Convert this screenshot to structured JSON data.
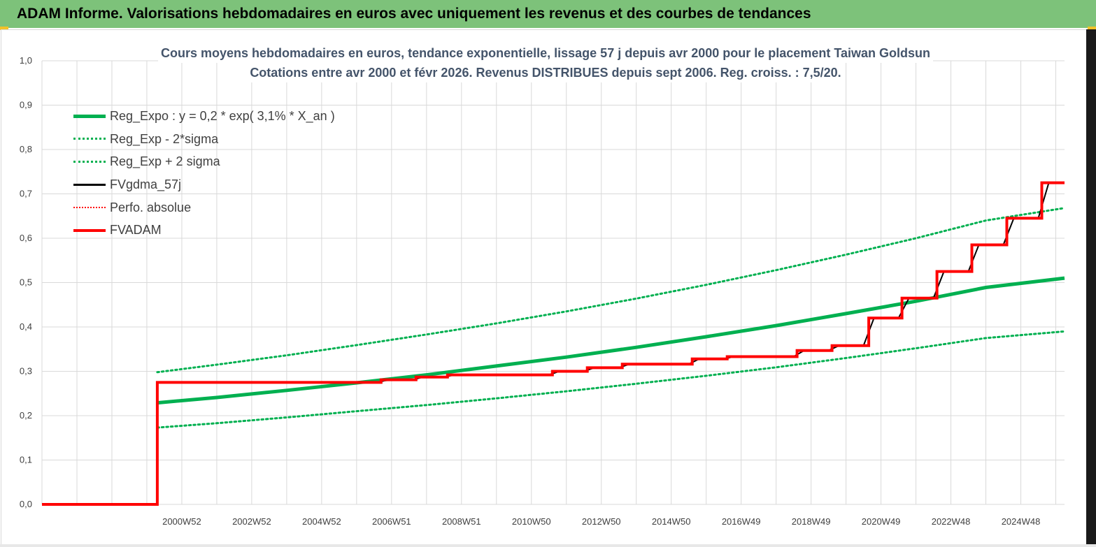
{
  "header": {
    "title": "ADAM Informe. Valorisations hebdomadaires en euros avec uniquement les revenus et des courbes de tendances"
  },
  "colors": {
    "banner": "#7dc27a",
    "reg_expo": "#00b050",
    "fvgdma": "#000000",
    "fvadam": "#ff0000",
    "perfo": "#ff0000",
    "grid": "#d9d9d9",
    "title_text": "#44546a"
  },
  "chart_data": {
    "type": "line",
    "title_line1": "Cours moyens hebdomadaires en euros, tendance exponentielle, lissage 57 j depuis avr 2000 pour le placement Taiwan Goldsun",
    "title_line2": "Cotations entre avr 2000 et févr 2026. Revenus DISTRIBUES depuis sept 2006. Reg. croiss. : 7,5/20.",
    "xlabel": "",
    "ylabel": "",
    "ylim": [
      0,
      1
    ],
    "y_ticks": [
      "0,0",
      "0,1",
      "0,2",
      "0,3",
      "0,4",
      "0,5",
      "0,6",
      "0,7",
      "0,8",
      "0,9",
      "1,0"
    ],
    "x_ticks": [
      "2000W52",
      "2002W52",
      "2004W52",
      "2006W51",
      "2008W51",
      "2010W50",
      "2012W50",
      "2014W50",
      "2016W49",
      "2018W49",
      "2020W49",
      "2022W48",
      "2024W48"
    ],
    "x_tick_years": [
      2001.0,
      2003.0,
      2005.0,
      2007.0,
      2009.0,
      2011.0,
      2013.0,
      2015.0,
      2017.0,
      2019.0,
      2021.0,
      2023.0,
      2025.0
    ],
    "x_range": [
      1997.0,
      2026.25
    ],
    "grid": true,
    "legend_position": "top-left",
    "series": [
      {
        "name": "Reg_Expo : y = 0,2 * exp( 3,1% *  X_an )",
        "style": "solid-thick",
        "x": [
          2000.3,
          2002,
          2004,
          2006,
          2008,
          2010,
          2012,
          2014,
          2016,
          2018,
          2020,
          2022,
          2024,
          2026.25
        ],
        "y": [
          0.229,
          0.241,
          0.257,
          0.274,
          0.292,
          0.312,
          0.332,
          0.354,
          0.378,
          0.403,
          0.43,
          0.458,
          0.489,
          0.51
        ]
      },
      {
        "name": "Reg_Exp - 2*sigma",
        "style": "dotted-green",
        "x": [
          2000.3,
          2002,
          2004,
          2006,
          2008,
          2010,
          2012,
          2014,
          2016,
          2018,
          2020,
          2022,
          2024,
          2026.25
        ],
        "y": [
          0.173,
          0.183,
          0.196,
          0.21,
          0.224,
          0.239,
          0.255,
          0.272,
          0.29,
          0.309,
          0.33,
          0.352,
          0.375,
          0.39
        ]
      },
      {
        "name": "Reg_Exp + 2 sigma",
        "style": "dotted-green",
        "x": [
          2000.3,
          2002,
          2004,
          2006,
          2008,
          2010,
          2012,
          2014,
          2016,
          2018,
          2020,
          2022,
          2024,
          2026.25
        ],
        "y": [
          0.298,
          0.315,
          0.336,
          0.359,
          0.383,
          0.408,
          0.435,
          0.464,
          0.495,
          0.528,
          0.563,
          0.6,
          0.64,
          0.668
        ]
      },
      {
        "name": "FVgdma_57j",
        "style": "solid-black",
        "x": [
          1997.0,
          2000.3,
          2000.3,
          2006.6,
          2006.9,
          2007.6,
          2007.9,
          2008.5,
          2008.8,
          2011.5,
          2011.8,
          2012.5,
          2012.8,
          2013.5,
          2013.8,
          2015.5,
          2015.8,
          2016.5,
          2016.8,
          2018.5,
          2018.8,
          2019.5,
          2019.8,
          2020.5,
          2020.8,
          2021.5,
          2021.8,
          2022.5,
          2022.8,
          2023.5,
          2023.8,
          2024.5,
          2024.8,
          2025.5,
          2025.8,
          2026.25
        ],
        "y": [
          0.0,
          0.0,
          0.275,
          0.275,
          0.281,
          0.281,
          0.287,
          0.287,
          0.292,
          0.292,
          0.3,
          0.3,
          0.308,
          0.308,
          0.316,
          0.316,
          0.328,
          0.328,
          0.333,
          0.333,
          0.347,
          0.347,
          0.358,
          0.358,
          0.42,
          0.42,
          0.465,
          0.465,
          0.525,
          0.525,
          0.585,
          0.585,
          0.645,
          0.645,
          0.725,
          0.725
        ]
      },
      {
        "name": "Perfo. absolue",
        "style": "dotted-red",
        "x": [],
        "y": []
      },
      {
        "name": "FVADAM",
        "style": "step-red",
        "x": [
          1997.0,
          2000.3,
          2000.3,
          2006.7,
          2006.7,
          2007.7,
          2007.7,
          2008.6,
          2008.6,
          2011.6,
          2011.6,
          2012.6,
          2012.6,
          2013.6,
          2013.6,
          2015.6,
          2015.6,
          2016.6,
          2016.6,
          2018.6,
          2018.6,
          2019.6,
          2019.6,
          2020.65,
          2020.65,
          2021.6,
          2021.6,
          2022.6,
          2022.6,
          2023.6,
          2023.6,
          2024.6,
          2024.6,
          2025.6,
          2025.6,
          2026.25
        ],
        "y": [
          0.0,
          0.0,
          0.275,
          0.275,
          0.281,
          0.281,
          0.287,
          0.287,
          0.292,
          0.292,
          0.3,
          0.3,
          0.308,
          0.308,
          0.316,
          0.316,
          0.328,
          0.328,
          0.333,
          0.333,
          0.347,
          0.347,
          0.358,
          0.358,
          0.42,
          0.42,
          0.465,
          0.465,
          0.525,
          0.525,
          0.585,
          0.585,
          0.645,
          0.645,
          0.725,
          0.725
        ]
      }
    ]
  }
}
